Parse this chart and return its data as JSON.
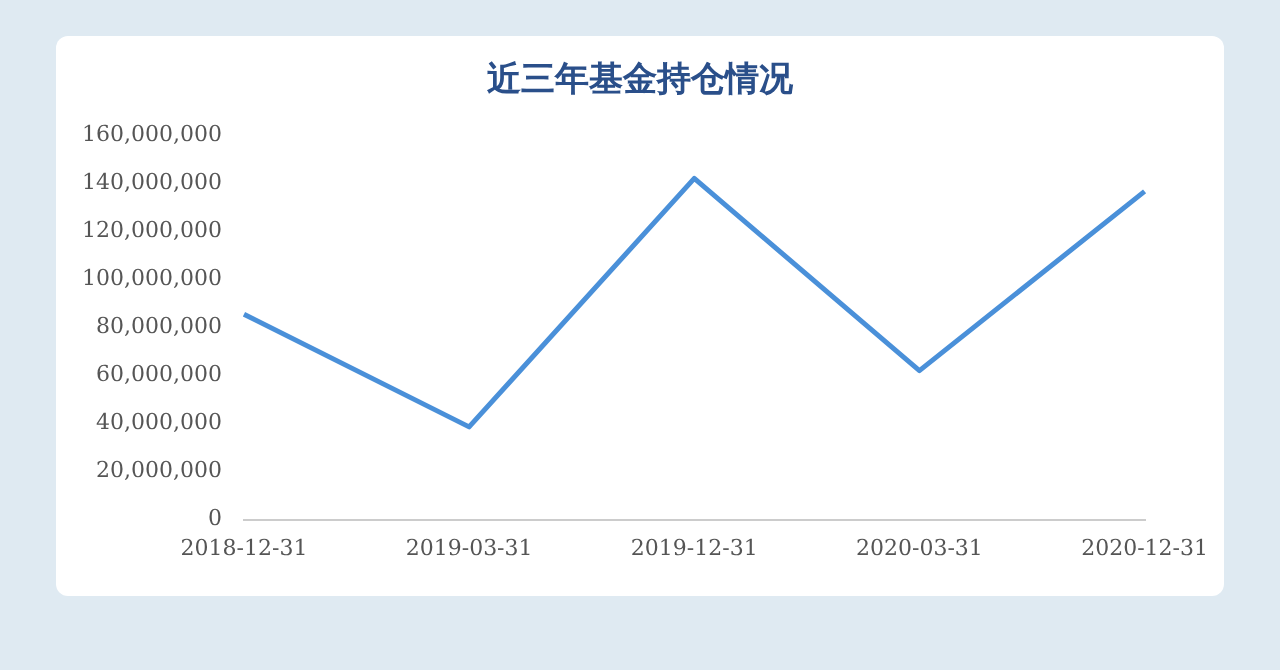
{
  "chart_data": {
    "type": "line",
    "title": "近三年基金持仓情况",
    "categories": [
      "2018-12-31",
      "2019-03-31",
      "2019-12-31",
      "2020-03-31",
      "2020-12-31"
    ],
    "series": [
      {
        "color": "#4a90d9",
        "values": [
          85500000,
          38600000,
          142000000,
          62000000,
          136600000
        ]
      }
    ],
    "ylim": [
      0,
      160000000
    ],
    "yticks": [
      0,
      {
        "value": 20000000,
        "label": "20,000,000"
      },
      {
        "value": 40000000,
        "label": "40,000,000"
      },
      {
        "value": 60000000,
        "label": "60,000,000"
      },
      {
        "value": 80000000,
        "label": "80,000,000"
      },
      {
        "value": 100000000,
        "label": "100,000,000"
      },
      {
        "value": 120000000,
        "label": "120,000,000"
      },
      {
        "value": 140000000,
        "label": "140,000,000"
      },
      {
        "value": 160000000,
        "label": "160,000,000"
      }
    ],
    "grid": false,
    "legend": false,
    "marker": "none",
    "line_style": "solid"
  }
}
